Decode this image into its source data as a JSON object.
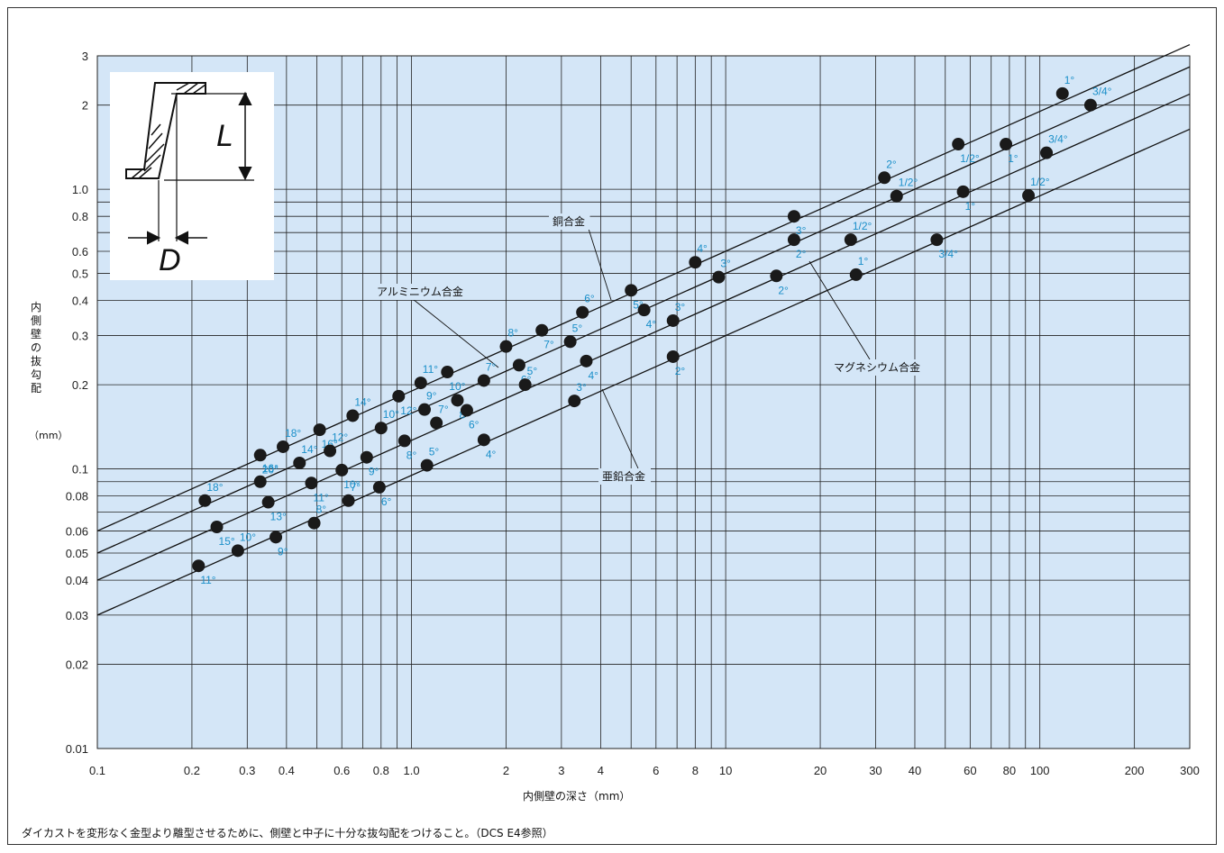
{
  "chart_data": {
    "type": "line",
    "xlabel": "内側壁の深さ（mm）",
    "ylabel": "内側壁の抜勾配",
    "yunit": "（mm）",
    "xscale": "log",
    "yscale": "log",
    "xlim": [
      0.1,
      300
    ],
    "ylim": [
      0.01,
      3
    ],
    "grid": true,
    "x_ticks": [
      0.1,
      0.2,
      0.3,
      0.4,
      0.6,
      0.8,
      1,
      2,
      3,
      4,
      6,
      8,
      10,
      20,
      30,
      40,
      60,
      80,
      100,
      200,
      300
    ],
    "x_tick_labels": [
      "0.1",
      "0.2",
      "0.3",
      "0.4",
      "0.6",
      "0.8",
      "1.0",
      "2",
      "3",
      "4",
      "6",
      "8",
      "10",
      "20",
      "30",
      "40",
      "60",
      "80",
      "100",
      "200",
      "300"
    ],
    "y_ticks": [
      0.01,
      0.02,
      0.03,
      0.04,
      0.05,
      0.06,
      0.08,
      0.1,
      0.2,
      0.3,
      0.4,
      0.5,
      0.6,
      0.8,
      1,
      2,
      3
    ],
    "y_tick_labels": [
      "0.01",
      "0.02",
      "0.03",
      "0.04",
      "0.05",
      "0.06",
      "0.08",
      "0.1",
      "0.2",
      "0.3",
      "0.4",
      "0.5",
      "0.6",
      "0.8",
      "1.0",
      "2",
      "3"
    ],
    "series": [
      {
        "name": "銅合金",
        "line": [
          [
            0.1,
            0.06
          ],
          [
            300,
            3.29
          ]
        ],
        "points": [
          {
            "x": 0.22,
            "y": 0.077,
            "label": "18°"
          },
          {
            "x": 0.33,
            "y": 0.112,
            "label": "20°"
          },
          {
            "x": 0.39,
            "y": 0.12,
            "label": "18°"
          },
          {
            "x": 0.51,
            "y": 0.138,
            "label": "16°"
          },
          {
            "x": 0.65,
            "y": 0.155,
            "label": "14°"
          },
          {
            "x": 0.91,
            "y": 0.182,
            "label": "12°"
          },
          {
            "x": 1.07,
            "y": 0.203,
            "label": "11°"
          },
          {
            "x": 1.3,
            "y": 0.222,
            "label": "10°"
          },
          {
            "x": 2.0,
            "y": 0.274,
            "label": "8°"
          },
          {
            "x": 2.6,
            "y": 0.313,
            "label": "7°"
          },
          {
            "x": 3.5,
            "y": 0.363,
            "label": "6°"
          },
          {
            "x": 5.0,
            "y": 0.435,
            "label": "5°"
          },
          {
            "x": 8.0,
            "y": 0.548,
            "label": "4°"
          },
          {
            "x": 16.5,
            "y": 0.8,
            "label": "3°"
          },
          {
            "x": 32,
            "y": 1.1,
            "label": "2°"
          },
          {
            "x": 55,
            "y": 1.45,
            "label": "1/2°"
          },
          {
            "x": 118,
            "y": 2.2,
            "label": "1°"
          }
        ]
      },
      {
        "name": "アルミニウム合金",
        "line": [
          [
            0.1,
            0.05
          ],
          [
            300,
            2.74
          ]
        ],
        "points": [
          {
            "x": 0.24,
            "y": 0.062,
            "label": "15°"
          },
          {
            "x": 0.33,
            "y": 0.09,
            "label": "16°"
          },
          {
            "x": 0.35,
            "y": 0.076,
            "label": "13°"
          },
          {
            "x": 0.44,
            "y": 0.105,
            "label": "14°"
          },
          {
            "x": 0.48,
            "y": 0.089,
            "label": "11°"
          },
          {
            "x": 0.55,
            "y": 0.116,
            "label": "12°"
          },
          {
            "x": 0.6,
            "y": 0.099,
            "label": "10°"
          },
          {
            "x": 0.8,
            "y": 0.14,
            "label": "10°"
          },
          {
            "x": 0.95,
            "y": 0.126,
            "label": "8°"
          },
          {
            "x": 1.1,
            "y": 0.163,
            "label": "9°"
          },
          {
            "x": 1.4,
            "y": 0.176,
            "label": "8°"
          },
          {
            "x": 1.7,
            "y": 0.207,
            "label": "7°"
          },
          {
            "x": 2.2,
            "y": 0.235,
            "label": "6°"
          },
          {
            "x": 3.2,
            "y": 0.285,
            "label": "5°"
          },
          {
            "x": 5.5,
            "y": 0.37,
            "label": "4°"
          },
          {
            "x": 9.5,
            "y": 0.485,
            "label": "3°"
          },
          {
            "x": 16.5,
            "y": 0.66,
            "label": "2°"
          },
          {
            "x": 35,
            "y": 0.945,
            "label": "1/2°"
          },
          {
            "x": 78,
            "y": 1.45,
            "label": "1°"
          },
          {
            "x": 145,
            "y": 2.0,
            "label": "3/4°"
          }
        ]
      },
      {
        "name": "マグネシウム合金",
        "line": [
          [
            0.1,
            0.04
          ],
          [
            300,
            2.19
          ]
        ],
        "points": [
          {
            "x": 0.28,
            "y": 0.051,
            "label": "10°"
          },
          {
            "x": 0.37,
            "y": 0.057,
            "label": "9°"
          },
          {
            "x": 0.49,
            "y": 0.064,
            "label": "8°"
          },
          {
            "x": 0.72,
            "y": 0.11,
            "label": "9°"
          },
          {
            "x": 1.2,
            "y": 0.146,
            "label": "7°"
          },
          {
            "x": 1.5,
            "y": 0.162,
            "label": "6°"
          },
          {
            "x": 2.3,
            "y": 0.2,
            "label": "5°"
          },
          {
            "x": 3.6,
            "y": 0.243,
            "label": "4°"
          },
          {
            "x": 6.8,
            "y": 0.339,
            "label": "3°"
          },
          {
            "x": 14.5,
            "y": 0.49,
            "label": "2°"
          },
          {
            "x": 25,
            "y": 0.66,
            "label": "1/2°"
          },
          {
            "x": 57,
            "y": 0.98,
            "label": "1°"
          },
          {
            "x": 105,
            "y": 1.35,
            "label": "3/4°"
          }
        ]
      },
      {
        "name": "亜鉛合金",
        "line": [
          [
            0.1,
            0.03
          ],
          [
            300,
            1.64
          ]
        ],
        "points": [
          {
            "x": 0.21,
            "y": 0.045,
            "label": "11°"
          },
          {
            "x": 0.63,
            "y": 0.077,
            "label": "7°"
          },
          {
            "x": 0.79,
            "y": 0.086,
            "label": "6°"
          },
          {
            "x": 1.12,
            "y": 0.103,
            "label": "5°"
          },
          {
            "x": 1.7,
            "y": 0.127,
            "label": "4°"
          },
          {
            "x": 3.3,
            "y": 0.175,
            "label": "3°"
          },
          {
            "x": 6.8,
            "y": 0.252,
            "label": "2°"
          },
          {
            "x": 26,
            "y": 0.495,
            "label": "1°"
          },
          {
            "x": 47,
            "y": 0.66,
            "label": "3/4°"
          },
          {
            "x": 92,
            "y": 0.95,
            "label": "1/2°"
          }
        ]
      }
    ]
  },
  "inset": {
    "L_label": "L",
    "D_label": "D"
  },
  "caption": "ダイカストを変形なく金型より離型させるために、側壁と中子に十分な抜勾配をつけること。（DCS E4参照）",
  "colors": {
    "plot_bg": "#d4e6f7",
    "grid": "#222222",
    "point": "#1a1a1a",
    "angle_label": "#1a8fc9"
  }
}
